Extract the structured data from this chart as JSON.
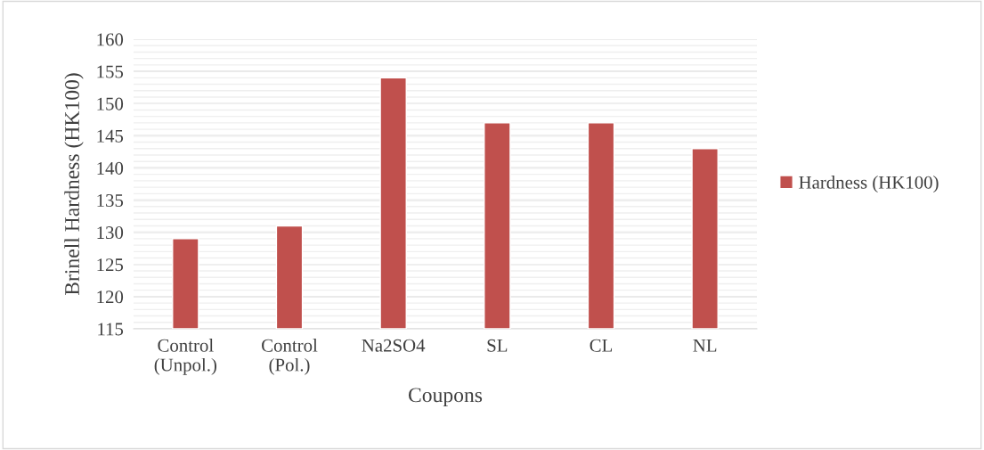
{
  "chart_data": {
    "type": "bar",
    "categories": [
      "Control\n(Unpol.)",
      "Control\n(Pol.)",
      "Na2SO4",
      "SL",
      "CL",
      "NL"
    ],
    "series": [
      {
        "name": "Hardness (HK100)",
        "color": "#c0504d",
        "values": [
          129,
          131,
          154,
          147,
          147,
          143
        ]
      }
    ],
    "xlabel": "Coupons",
    "ylabel": "Brinell Hardness (HK100)",
    "ylim": [
      115,
      160
    ],
    "yticks": [
      115,
      120,
      125,
      130,
      135,
      140,
      145,
      150,
      155,
      160
    ],
    "grid": "y",
    "legend": "right"
  }
}
